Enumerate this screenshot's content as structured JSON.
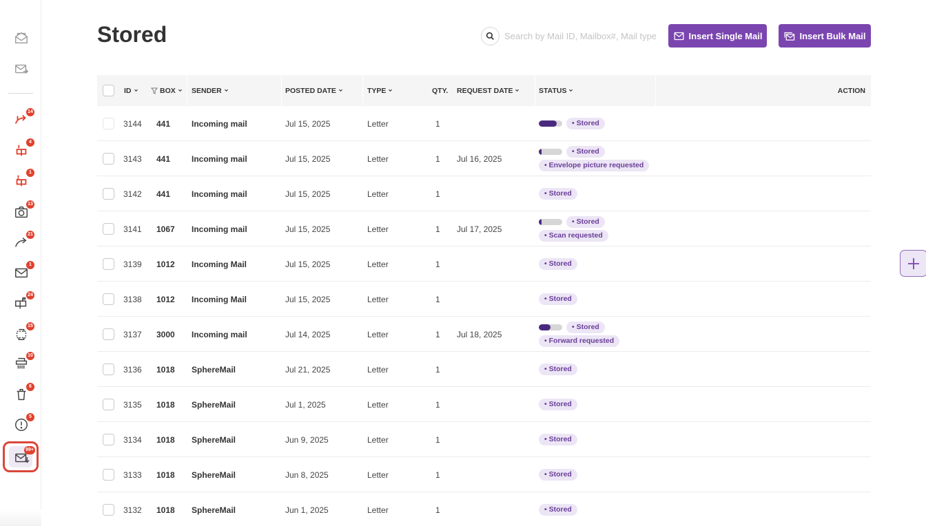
{
  "page": {
    "title": "Stored"
  },
  "search": {
    "placeholder": "Search by Mail ID, Mailbox#, Mail type"
  },
  "actions": {
    "insert_single": "Insert Single Mail",
    "insert_bulk": "Insert Bulk Mail"
  },
  "sidebar": {
    "items": [
      {
        "icon": "open-envelope-icon",
        "badge": ""
      },
      {
        "icon": "mail-forward-icon",
        "badge": ""
      },
      {
        "icon": "urgent-forward-icon",
        "badge": "14"
      },
      {
        "icon": "urgent-mailbox-icon",
        "badge": "4"
      },
      {
        "icon": "alert-mailbox-icon",
        "badge": "1"
      },
      {
        "icon": "camera-icon",
        "badge": "13"
      },
      {
        "icon": "forward-arrow-icon",
        "badge": "21"
      },
      {
        "icon": "envelope-icon",
        "badge": "1"
      },
      {
        "icon": "mailbox-icon",
        "badge": "24"
      },
      {
        "icon": "scan-icon",
        "badge": "15"
      },
      {
        "icon": "shredder-icon",
        "badge": "10"
      },
      {
        "icon": "trash-icon",
        "badge": "6"
      },
      {
        "icon": "warning-icon",
        "badge": "5"
      },
      {
        "icon": "stored-mail-icon",
        "badge": "99+"
      }
    ]
  },
  "table": {
    "headers": {
      "id": "ID",
      "box": "BOX",
      "sender": "SENDER",
      "posted_date": "POSTED DATE",
      "type": "TYPE",
      "qty": "QTY.",
      "request_date": "REQUEST DATE",
      "status": "STATUS",
      "action": "ACTION"
    },
    "rows": [
      {
        "id": "3144",
        "box": "441",
        "sender": "Incoming mail",
        "posted": "Jul 15, 2025",
        "type": "Letter",
        "qty": "1",
        "request": "",
        "progress": 0.75,
        "statuses": [
          "Stored"
        ]
      },
      {
        "id": "3143",
        "box": "441",
        "sender": "Incoming mail",
        "posted": "Jul 15, 2025",
        "type": "Letter",
        "qty": "1",
        "request": "Jul 16, 2025",
        "progress": 0.12,
        "statuses": [
          "Stored",
          "Envelope picture requested"
        ]
      },
      {
        "id": "3142",
        "box": "441",
        "sender": "Incoming mail",
        "posted": "Jul 15, 2025",
        "type": "Letter",
        "qty": "1",
        "request": "",
        "progress": null,
        "statuses": [
          "Stored"
        ]
      },
      {
        "id": "3141",
        "box": "1067",
        "sender": "Incoming mail",
        "posted": "Jul 15, 2025",
        "type": "Letter",
        "qty": "1",
        "request": "Jul 17, 2025",
        "progress": 0.12,
        "statuses": [
          "Stored",
          "Scan requested"
        ]
      },
      {
        "id": "3139",
        "box": "1012",
        "sender": "Incoming Mail",
        "posted": "Jul 15, 2025",
        "type": "Letter",
        "qty": "1",
        "request": "",
        "progress": null,
        "statuses": [
          "Stored"
        ]
      },
      {
        "id": "3138",
        "box": "1012",
        "sender": "Incoming Mail",
        "posted": "Jul 15, 2025",
        "type": "Letter",
        "qty": "1",
        "request": "",
        "progress": null,
        "statuses": [
          "Stored"
        ]
      },
      {
        "id": "3137",
        "box": "3000",
        "sender": "Incoming mail",
        "posted": "Jul 14, 2025",
        "type": "Letter",
        "qty": "1",
        "request": "Jul 18, 2025",
        "progress": 0.5,
        "statuses": [
          "Stored",
          "Forward requested"
        ]
      },
      {
        "id": "3136",
        "box": "1018",
        "sender": "SphereMail",
        "posted": "Jul 21, 2025",
        "type": "Letter",
        "qty": "1",
        "request": "",
        "progress": null,
        "statuses": [
          "Stored"
        ]
      },
      {
        "id": "3135",
        "box": "1018",
        "sender": "SphereMail",
        "posted": "Jul 1, 2025",
        "type": "Letter",
        "qty": "1",
        "request": "",
        "progress": null,
        "statuses": [
          "Stored"
        ]
      },
      {
        "id": "3134",
        "box": "1018",
        "sender": "SphereMail",
        "posted": "Jun 9, 2025",
        "type": "Letter",
        "qty": "1",
        "request": "",
        "progress": null,
        "statuses": [
          "Stored"
        ]
      },
      {
        "id": "3133",
        "box": "1018",
        "sender": "SphereMail",
        "posted": "Jun 8, 2025",
        "type": "Letter",
        "qty": "1",
        "request": "",
        "progress": null,
        "statuses": [
          "Stored"
        ]
      },
      {
        "id": "3132",
        "box": "1018",
        "sender": "SphereMail",
        "posted": "Jun 1, 2025",
        "type": "Letter",
        "qty": "1",
        "request": "",
        "progress": null,
        "statuses": [
          "Stored"
        ]
      }
    ]
  },
  "colors": {
    "accent": "#7b45b0",
    "pill_bg": "#ece5f5",
    "pill_text": "#6a3e99",
    "badge": "#e0412e",
    "active_outline": "#d9463b"
  }
}
